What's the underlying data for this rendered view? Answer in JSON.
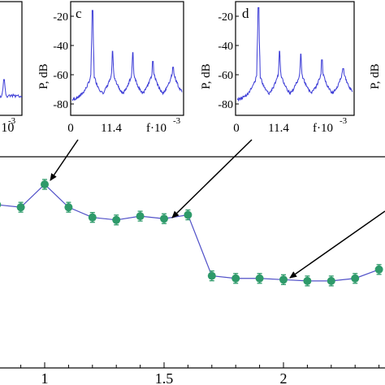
{
  "colors": {
    "spectrum": "#3b3bd6",
    "point_fill": "#2e9a6a",
    "line": "#5050c8",
    "error_bar": "#2e9a6a",
    "axes": "#000000",
    "background": "#ffffff"
  },
  "insets": [
    {
      "panel_label": "",
      "ylabel": "",
      "ytick_labels": [],
      "xtick_labels": [
        "·10",
        "-3"
      ],
      "partial": "left"
    },
    {
      "panel_label": "c",
      "ylabel": "P, dB",
      "ytick_labels": [
        "-20",
        "-40",
        "-60",
        "-80"
      ],
      "xtick_labels": [
        "0",
        "11.4",
        "f·10"
      ],
      "xtick_exponent": "-3"
    },
    {
      "panel_label": "d",
      "ylabel": "P, dB",
      "ytick_labels": [
        "-20",
        "-40",
        "-60",
        "-80"
      ],
      "xtick_labels": [
        "0",
        "11.4",
        "f·10"
      ],
      "xtick_exponent": "-3"
    },
    {
      "panel_label": "",
      "ylabel": "P, dB",
      "partial": "right"
    }
  ],
  "chart_data": [
    {
      "type": "line",
      "role": "main",
      "x_tick_labels": [
        "1",
        "1.5",
        "2"
      ],
      "x_ticks": [
        1,
        1.5,
        2
      ],
      "xlim": [
        0.8,
        2.42
      ],
      "grid": false,
      "markers": "filled circles with error bars",
      "series": [
        {
          "x": [
            0.8,
            0.9,
            1.0,
            1.1,
            1.2,
            1.3,
            1.4,
            1.5,
            1.6,
            1.7,
            1.8,
            1.9,
            2.0,
            2.1,
            2.2,
            2.3,
            2.4
          ],
          "y": [
            0.62,
            0.6,
            0.78,
            0.6,
            0.52,
            0.5,
            0.53,
            0.51,
            0.54,
            0.06,
            0.04,
            0.04,
            0.03,
            0.02,
            0.02,
            0.04,
            0.11
          ],
          "y_err": [
            0.07,
            0.07,
            0.07,
            0.07,
            0.07,
            0.07,
            0.07,
            0.07,
            0.07,
            0.07,
            0.07,
            0.07,
            0.07,
            0.07,
            0.07,
            0.07,
            0.07
          ]
        }
      ],
      "annotations": [
        {
          "type": "arrow",
          "from_inset": "c",
          "to_x": 1.0
        },
        {
          "type": "arrow",
          "from_inset": "d",
          "to_x": 1.5
        },
        {
          "type": "arrow",
          "from_inset": "right",
          "to_x": 2.0
        }
      ]
    },
    {
      "type": "line",
      "role": "inset c spectrum",
      "y_unit": "dB",
      "ylim": [
        -88,
        -12
      ],
      "x_ticks": [
        0,
        11.4
      ],
      "peaks": [
        {
          "x": 5.7,
          "y": -17
        },
        {
          "x": 11.4,
          "y": -45
        },
        {
          "x": 17.1,
          "y": -46
        },
        {
          "x": 22.8,
          "y": -52
        },
        {
          "x": 28.5,
          "y": -56
        }
      ],
      "baseline": -80
    },
    {
      "type": "line",
      "role": "inset d spectrum",
      "y_unit": "dB",
      "ylim": [
        -88,
        -12
      ],
      "x_ticks": [
        0,
        11.4
      ],
      "peaks": [
        {
          "x": 5.7,
          "y": -15
        },
        {
          "x": 11.4,
          "y": -45
        },
        {
          "x": 17.1,
          "y": -47
        },
        {
          "x": 22.8,
          "y": -51
        },
        {
          "x": 28.5,
          "y": -57
        }
      ],
      "baseline": -80
    }
  ]
}
